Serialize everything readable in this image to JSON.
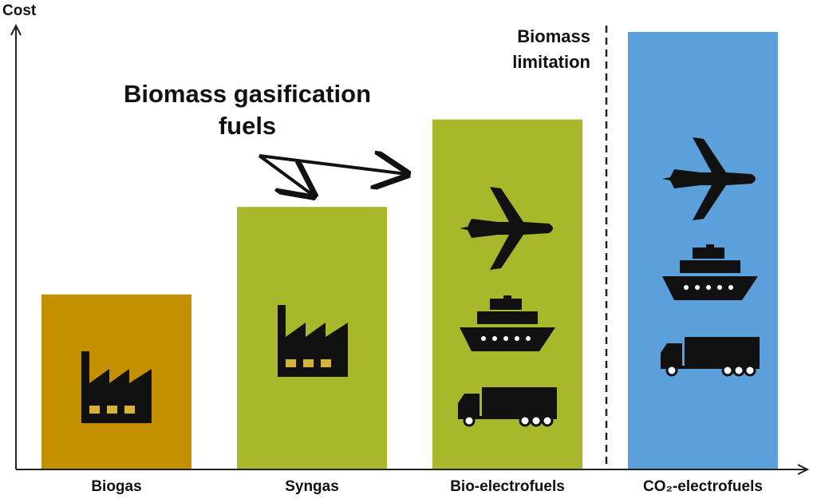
{
  "chart_data": {
    "type": "bar",
    "y_label": "Cost",
    "categories": [
      "Biogas",
      "Syngas",
      "Bio-electrofuels",
      "CO₂-electrofuels"
    ],
    "values": [
      22,
      33,
      44,
      55
    ],
    "colors": [
      "#c49000",
      "#a9b82b",
      "#a9b82b",
      "#5b9fdb"
    ],
    "ylim": [
      0,
      56
    ],
    "annotations": [
      [
        "Biomass gasification",
        "fuels"
      ],
      [
        "Biomass",
        "limitation"
      ]
    ]
  }
}
